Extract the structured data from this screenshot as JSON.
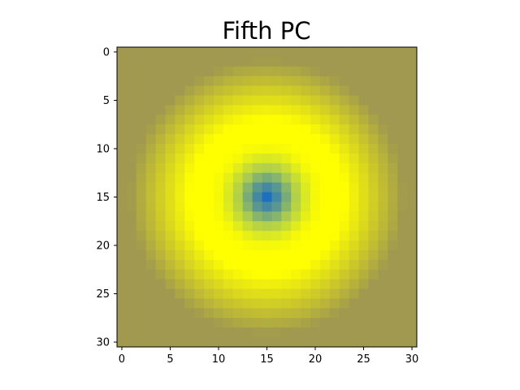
{
  "chart_data": {
    "type": "heatmap",
    "title": "Fifth PC",
    "xlabel": "",
    "ylabel": "",
    "shape": [
      31,
      31
    ],
    "center": [
      15,
      15
    ],
    "xlim": [
      -0.5,
      30.5
    ],
    "ylim": [
      30.5,
      -0.5
    ],
    "x_ticks": [
      "0",
      "5",
      "10",
      "15",
      "20",
      "25",
      "30"
    ],
    "y_ticks": [
      "0",
      "5",
      "10",
      "15",
      "20",
      "25",
      "30"
    ],
    "colormap": "blue-green-yellow with olive background",
    "radial_profile": {
      "radius": [
        0,
        1,
        2,
        3,
        4,
        5,
        6,
        7,
        8,
        9,
        10,
        11,
        12,
        13,
        14,
        15
      ],
      "value": [
        0.0,
        0.15,
        0.35,
        0.6,
        0.8,
        0.95,
        1.0,
        0.98,
        0.92,
        0.85,
        0.78,
        0.7,
        0.6,
        0.5,
        0.4,
        0.3
      ]
    },
    "colors": {
      "low": "#1d6fbf",
      "mid": "#9fc45a",
      "high": "#ffff00",
      "background": "#a0994f"
    }
  }
}
